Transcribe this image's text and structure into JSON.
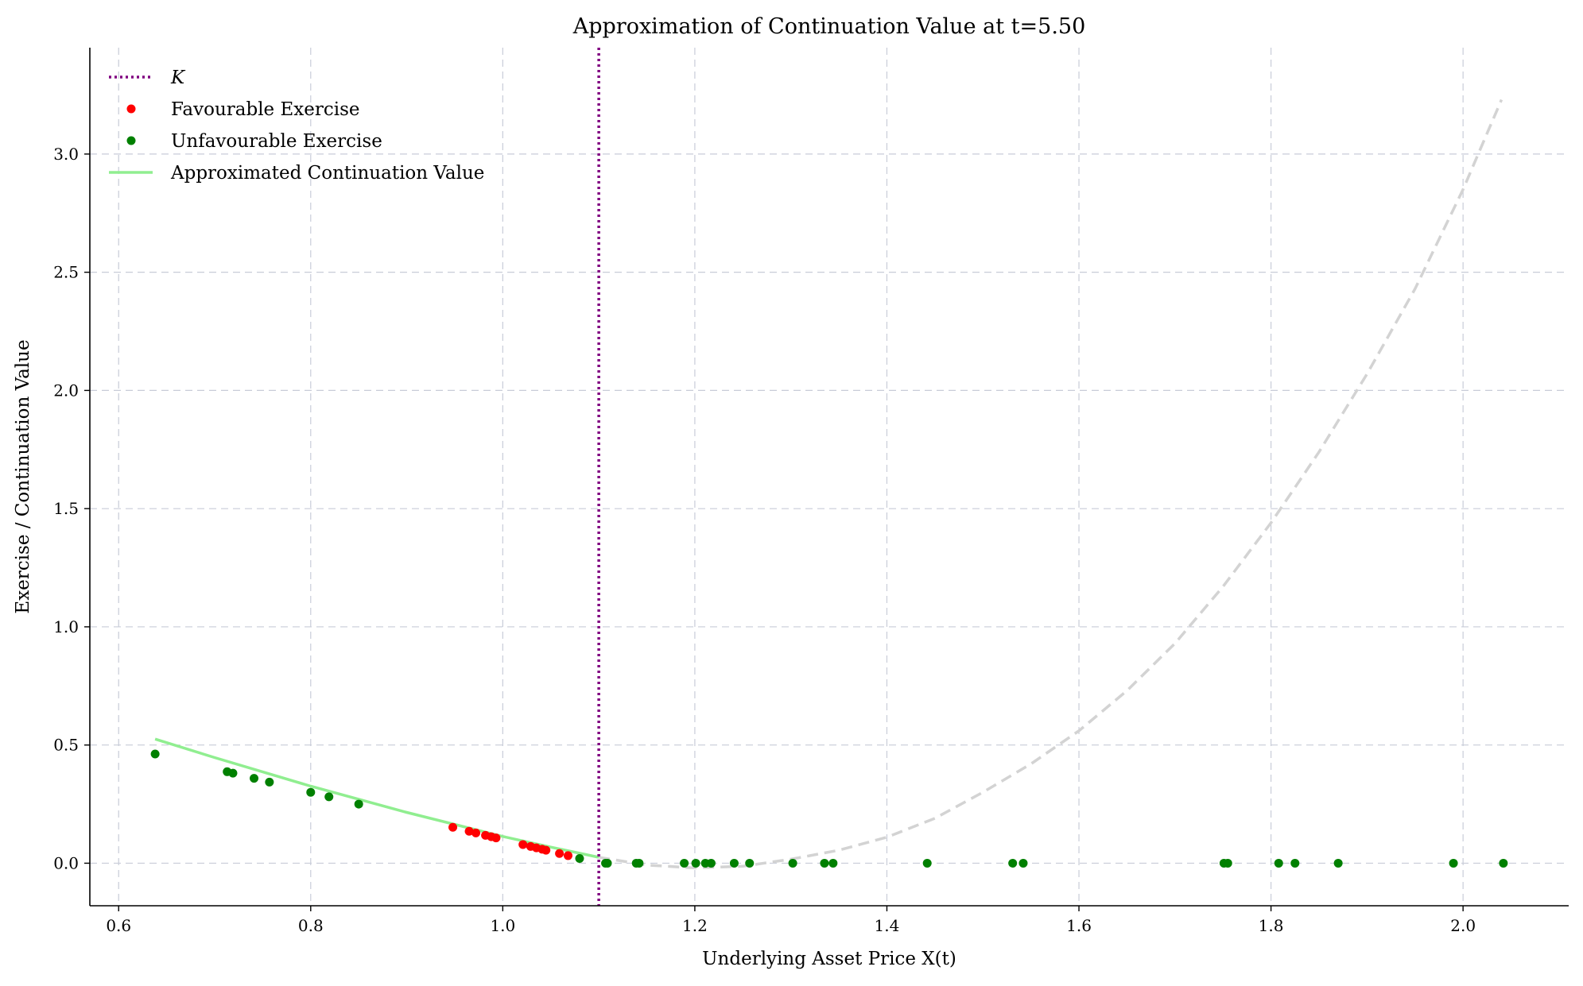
{
  "chart_data": {
    "type": "scatter",
    "title": "Approximation of Continuation Value at t=5.50",
    "xlabel": "Underlying Asset Price X(t)",
    "ylabel": "Exercise / Continuation Value",
    "xlim": [
      0.57,
      2.11
    ],
    "ylim": [
      -0.18,
      3.45
    ],
    "xticks": [
      0.6,
      0.8,
      1.0,
      1.2,
      1.4,
      1.6,
      1.8,
      2.0
    ],
    "xtick_labels": [
      "0.6",
      "0.8",
      "1.0",
      "1.2",
      "1.4",
      "1.6",
      "1.8",
      "2.0"
    ],
    "yticks": [
      0.0,
      0.5,
      1.0,
      1.5,
      2.0,
      2.5,
      3.0
    ],
    "ytick_labels": [
      "0.0",
      "0.5",
      "1.0",
      "1.5",
      "2.0",
      "2.5",
      "3.0"
    ],
    "grid": true,
    "legend_placement": "top-left",
    "strike": {
      "name": "K",
      "x": 1.1,
      "color": "#800080"
    },
    "series": [
      {
        "name": "Favourable Exercise",
        "kind": "scatter",
        "color": "#ff0000",
        "points": [
          [
            0.948,
            0.152
          ],
          [
            0.965,
            0.135
          ],
          [
            0.972,
            0.128
          ],
          [
            0.982,
            0.118
          ],
          [
            0.988,
            0.112
          ],
          [
            0.993,
            0.107
          ],
          [
            1.021,
            0.079
          ],
          [
            1.029,
            0.071
          ],
          [
            1.035,
            0.065
          ],
          [
            1.041,
            0.059
          ],
          [
            1.045,
            0.055
          ],
          [
            1.059,
            0.041
          ],
          [
            1.068,
            0.032
          ]
        ]
      },
      {
        "name": "Unfavourable Exercise",
        "kind": "scatter",
        "color": "#008000",
        "points": [
          [
            0.638,
            0.462
          ],
          [
            0.713,
            0.387
          ],
          [
            0.719,
            0.381
          ],
          [
            0.741,
            0.359
          ],
          [
            0.757,
            0.343
          ],
          [
            0.8,
            0.3
          ],
          [
            0.819,
            0.281
          ],
          [
            0.85,
            0.25
          ],
          [
            1.08,
            0.02
          ],
          [
            1.107,
            0.0
          ],
          [
            1.109,
            0.0
          ],
          [
            1.139,
            0.0
          ],
          [
            1.142,
            0.0
          ],
          [
            1.189,
            0.0
          ],
          [
            1.201,
            0.0
          ],
          [
            1.211,
            0.0
          ],
          [
            1.217,
            0.0
          ],
          [
            1.241,
            0.0
          ],
          [
            1.257,
            0.0
          ],
          [
            1.302,
            0.0
          ],
          [
            1.335,
            0.0
          ],
          [
            1.344,
            0.0
          ],
          [
            1.442,
            0.0
          ],
          [
            1.531,
            0.0
          ],
          [
            1.542,
            0.0
          ],
          [
            1.751,
            0.0
          ],
          [
            1.755,
            0.0
          ],
          [
            1.808,
            0.0
          ],
          [
            1.825,
            0.0
          ],
          [
            1.87,
            0.0
          ],
          [
            1.99,
            0.0
          ],
          [
            2.042,
            0.0
          ]
        ]
      },
      {
        "name": "Approximated Continuation Value",
        "kind": "line",
        "color": "#90ee90",
        "x": [
          0.638,
          0.7,
          0.8,
          0.9,
          1.0,
          1.05,
          1.1
        ],
        "y": [
          0.525,
          0.447,
          0.326,
          0.215,
          0.113,
          0.068,
          0.025
        ]
      },
      {
        "kind": "dashed-line",
        "color": "#d3d3d3",
        "x": [
          1.1,
          1.15,
          1.2,
          1.25,
          1.3,
          1.35,
          1.4,
          1.45,
          1.5,
          1.55,
          1.6,
          1.65,
          1.7,
          1.75,
          1.8,
          1.85,
          1.9,
          1.95,
          2.0,
          2.04
        ],
        "y": [
          0.025,
          -0.008,
          -0.02,
          -0.013,
          0.017,
          0.055,
          0.11,
          0.19,
          0.3,
          0.42,
          0.56,
          0.73,
          0.93,
          1.17,
          1.44,
          1.74,
          2.07,
          2.43,
          2.85,
          3.23
        ]
      }
    ]
  }
}
